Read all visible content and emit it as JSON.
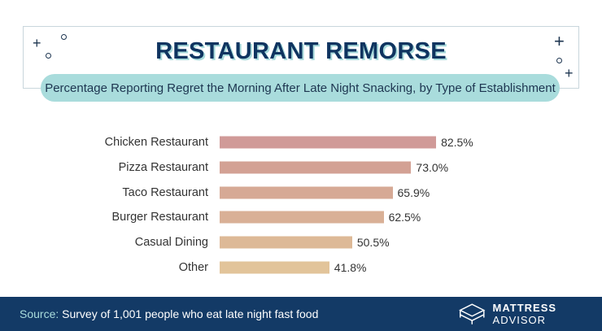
{
  "title": "RESTAURANT REMORSE",
  "subtitle": "Percentage Reporting Regret the Morning After Late Night Snacking, by Type of Establishment",
  "chart_data": {
    "type": "bar",
    "orientation": "horizontal",
    "title": "RESTAURANT REMORSE",
    "subtitle": "Percentage Reporting Regret the Morning After Late Night Snacking, by Type of Establishment",
    "categories": [
      "Chicken Restaurant",
      "Pizza Restaurant",
      "Taco Restaurant",
      "Burger Restaurant",
      "Casual Dining",
      "Other"
    ],
    "values": [
      82.5,
      73.0,
      65.9,
      62.5,
      50.5,
      41.8
    ],
    "labels": [
      "82.5%",
      "73.0%",
      "65.9%",
      "62.5%",
      "50.5%",
      "41.8%"
    ],
    "colors": [
      "#d09a98",
      "#d3a194",
      "#d6a995",
      "#d9b096",
      "#ddb997",
      "#e2c49a"
    ],
    "xlim": [
      0,
      100
    ],
    "grid": false,
    "axes_visible": false
  },
  "footer": {
    "source_label": "Source:",
    "source_text": " Survey of 1,001 people who eat late night fast food",
    "brand_bold": "MATTRESS",
    "brand_light": "ADVISOR"
  },
  "colors": {
    "navy": "#133a66",
    "teal": "#a9dcdc"
  }
}
